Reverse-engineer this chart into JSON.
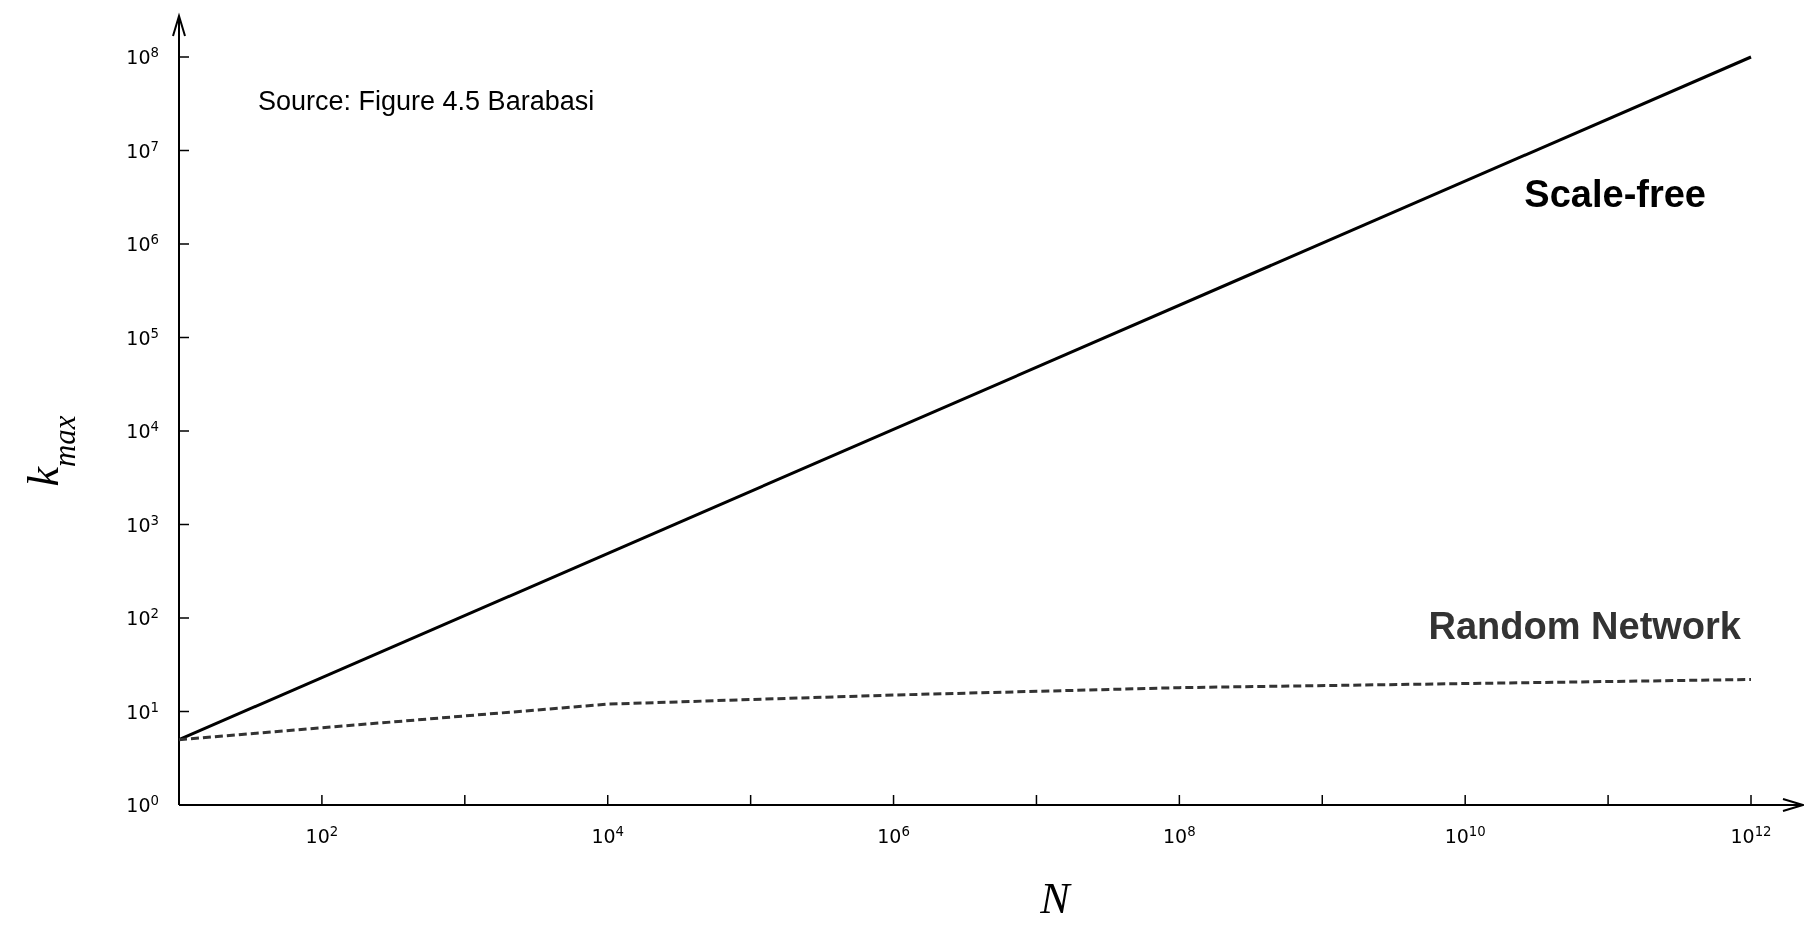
{
  "chart_data": {
    "type": "line",
    "xlabel": "N",
    "ylabel": "k$_{max}$",
    "log": "xy",
    "grid": false,
    "xlim": [
      10,
      1000000000000
    ],
    "ylim": [
      1,
      100000000
    ],
    "xticks": [
      {
        "value": 100,
        "label": "10$^{2}$"
      },
      {
        "value": 1000,
        "label": null
      },
      {
        "value": 10000,
        "label": "10$^{4}$"
      },
      {
        "value": 100000,
        "label": null
      },
      {
        "value": 1000000,
        "label": "10$^{6}$"
      },
      {
        "value": 10000000,
        "label": null
      },
      {
        "value": 100000000,
        "label": "10$^{8}$"
      },
      {
        "value": 1000000000,
        "label": null
      },
      {
        "value": 10000000000,
        "label": "10$^{10}$"
      },
      {
        "value": 100000000000,
        "label": null
      },
      {
        "value": 1000000000000,
        "label": "10$^{12}$"
      }
    ],
    "yticks": [
      {
        "value": 1,
        "label": "10$^{0}$"
      },
      {
        "value": 10,
        "label": "10$^{1}$"
      },
      {
        "value": 100,
        "label": "10$^{2}$"
      },
      {
        "value": 1000,
        "label": "10$^{3}$"
      },
      {
        "value": 10000,
        "label": "10$^{4}$"
      },
      {
        "value": 100000,
        "label": "10$^{5}$"
      },
      {
        "value": 1000000,
        "label": "10$^{6}$"
      },
      {
        "value": 10000000,
        "label": "10$^{7}$"
      },
      {
        "value": 100000000,
        "label": "10$^{8}$"
      }
    ],
    "series": [
      {
        "name": "Scale-free",
        "color": "#000000",
        "line_style": "solid",
        "x": [
          10,
          1000000000000
        ],
        "values": [
          5,
          100000000
        ]
      },
      {
        "name": "Random Network",
        "color": "#333333",
        "line_style": "dashed",
        "x": [
          10,
          10000,
          1000000,
          100000000,
          1000000000000
        ],
        "values": [
          5,
          12,
          15,
          18,
          22
        ]
      }
    ],
    "annotations": [
      "Source: Figure 4.5 Barabasi"
    ]
  }
}
